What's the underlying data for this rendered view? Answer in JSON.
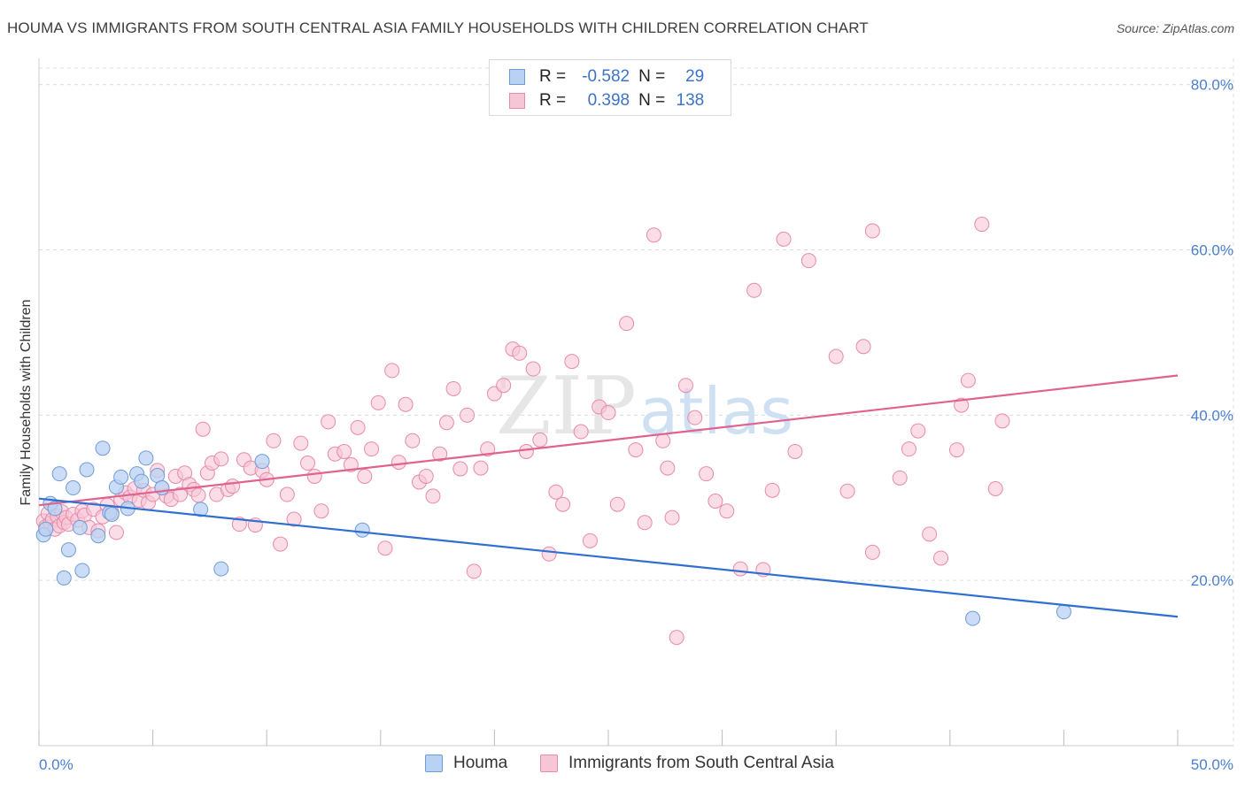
{
  "title": "HOUMA VS IMMIGRANTS FROM SOUTH CENTRAL ASIA FAMILY HOUSEHOLDS WITH CHILDREN CORRELATION CHART",
  "source": "Source: ZipAtlas.com",
  "watermark": {
    "zip": "ZIP",
    "atlas": "atlas"
  },
  "legend": {
    "rows": [
      {
        "r_label": "R =",
        "r_value": "-0.582",
        "n_label": "N =",
        "n_value": "29"
      },
      {
        "r_label": "R =",
        "r_value": "0.398",
        "n_label": "N =",
        "n_value": "138"
      }
    ]
  },
  "bottom_legend": {
    "houma": "Houma",
    "immigrants": "Immigrants from South Central Asia"
  },
  "colors": {
    "houma_fill": "#b9d2f3",
    "houma_stroke": "#6f9bd8",
    "houma_line": "#2f6fcf",
    "imm_fill": "#f7c6d6",
    "imm_stroke": "#e88aaa",
    "imm_line": "#e0628f",
    "tick_text": "#4a7fd0",
    "grid": "#dcdcdc"
  },
  "chart_data": {
    "type": "scatter",
    "title": "HOUMA VS IMMIGRANTS FROM SOUTH CENTRAL ASIA FAMILY HOUSEHOLDS WITH CHILDREN CORRELATION CHART",
    "xlabel": "",
    "ylabel": "Family Households with Children",
    "xlim": [
      0,
      50
    ],
    "ylim": [
      0,
      82
    ],
    "x_tick_labels": [
      "0.0%",
      "50.0%"
    ],
    "y_ticks": [
      20,
      40,
      60,
      80
    ],
    "y_tick_labels": [
      "20.0%",
      "40.0%",
      "60.0%",
      "80.0%"
    ],
    "grid": true,
    "series": [
      {
        "name": "Houma",
        "R": -0.582,
        "N": 29,
        "trend": {
          "x": [
            0,
            50
          ],
          "y": [
            29.9,
            15.6
          ]
        },
        "points": [
          [
            0.2,
            25.5
          ],
          [
            0.3,
            26.2
          ],
          [
            0.5,
            29.3
          ],
          [
            0.7,
            28.7
          ],
          [
            0.9,
            32.9
          ],
          [
            1.1,
            20.3
          ],
          [
            1.3,
            23.7
          ],
          [
            1.5,
            31.2
          ],
          [
            1.8,
            26.4
          ],
          [
            1.9,
            21.2
          ],
          [
            2.1,
            33.4
          ],
          [
            2.6,
            25.4
          ],
          [
            2.8,
            36.0
          ],
          [
            3.1,
            28.2
          ],
          [
            3.4,
            31.3
          ],
          [
            3.6,
            32.5
          ],
          [
            3.9,
            28.7
          ],
          [
            4.3,
            32.9
          ],
          [
            4.5,
            32.0
          ],
          [
            4.7,
            34.8
          ],
          [
            5.2,
            32.7
          ],
          [
            5.4,
            31.2
          ],
          [
            7.1,
            28.6
          ],
          [
            8.0,
            21.4
          ],
          [
            9.8,
            34.4
          ],
          [
            14.2,
            26.1
          ],
          [
            3.2,
            28.0
          ],
          [
            41.0,
            15.4
          ],
          [
            45.0,
            16.2
          ]
        ]
      },
      {
        "name": "Immigrants from South Central Asia",
        "R": 0.398,
        "N": 138,
        "trend": {
          "x": [
            0,
            50
          ],
          "y": [
            29.1,
            44.8
          ]
        },
        "points": [
          [
            0.2,
            27.2
          ],
          [
            0.3,
            26.5
          ],
          [
            0.4,
            28.1
          ],
          [
            0.5,
            26.9
          ],
          [
            0.6,
            27.4
          ],
          [
            0.7,
            26.2
          ],
          [
            0.8,
            27.8
          ],
          [
            0.9,
            26.6
          ],
          [
            1.0,
            28.3
          ],
          [
            1.1,
            27.0
          ],
          [
            1.2,
            27.6
          ],
          [
            1.3,
            26.8
          ],
          [
            1.5,
            28.0
          ],
          [
            1.7,
            27.3
          ],
          [
            1.9,
            28.4
          ],
          [
            2.0,
            27.9
          ],
          [
            2.2,
            26.4
          ],
          [
            2.4,
            28.6
          ],
          [
            2.6,
            26.0
          ],
          [
            2.8,
            27.7
          ],
          [
            3.0,
            29.1
          ],
          [
            3.2,
            28.2
          ],
          [
            3.4,
            25.8
          ],
          [
            3.6,
            29.8
          ],
          [
            3.8,
            30.6
          ],
          [
            4.0,
            30.1
          ],
          [
            4.2,
            31.1
          ],
          [
            4.4,
            29.7
          ],
          [
            4.6,
            30.9
          ],
          [
            4.8,
            29.4
          ],
          [
            5.0,
            30.4
          ],
          [
            5.2,
            33.3
          ],
          [
            5.4,
            31.2
          ],
          [
            5.6,
            30.2
          ],
          [
            5.8,
            29.8
          ],
          [
            6.0,
            32.6
          ],
          [
            6.2,
            30.4
          ],
          [
            6.4,
            33.0
          ],
          [
            6.6,
            31.6
          ],
          [
            6.8,
            31.0
          ],
          [
            7.0,
            30.3
          ],
          [
            7.2,
            38.3
          ],
          [
            7.4,
            33.0
          ],
          [
            7.6,
            34.2
          ],
          [
            7.8,
            30.4
          ],
          [
            8.0,
            34.7
          ],
          [
            8.3,
            31.0
          ],
          [
            8.5,
            31.4
          ],
          [
            8.8,
            26.8
          ],
          [
            9.0,
            34.6
          ],
          [
            9.3,
            33.6
          ],
          [
            9.5,
            26.7
          ],
          [
            9.8,
            33.3
          ],
          [
            10.0,
            32.2
          ],
          [
            10.3,
            36.9
          ],
          [
            10.6,
            24.4
          ],
          [
            10.9,
            30.4
          ],
          [
            11.2,
            27.4
          ],
          [
            11.5,
            36.6
          ],
          [
            11.8,
            34.2
          ],
          [
            12.1,
            32.6
          ],
          [
            12.4,
            28.4
          ],
          [
            12.7,
            39.2
          ],
          [
            13.0,
            35.3
          ],
          [
            13.4,
            35.6
          ],
          [
            13.7,
            34.0
          ],
          [
            14.0,
            38.5
          ],
          [
            14.3,
            32.6
          ],
          [
            14.6,
            35.9
          ],
          [
            14.9,
            41.5
          ],
          [
            15.2,
            23.9
          ],
          [
            15.5,
            45.4
          ],
          [
            15.8,
            34.3
          ],
          [
            16.1,
            41.3
          ],
          [
            16.4,
            36.9
          ],
          [
            16.7,
            31.9
          ],
          [
            17.0,
            32.6
          ],
          [
            17.3,
            30.2
          ],
          [
            17.6,
            35.3
          ],
          [
            17.9,
            39.1
          ],
          [
            18.2,
            43.2
          ],
          [
            18.5,
            33.5
          ],
          [
            18.8,
            40.0
          ],
          [
            19.1,
            21.1
          ],
          [
            19.4,
            33.6
          ],
          [
            19.7,
            35.9
          ],
          [
            20.0,
            42.6
          ],
          [
            20.4,
            43.6
          ],
          [
            20.8,
            48.0
          ],
          [
            21.1,
            47.5
          ],
          [
            21.4,
            35.6
          ],
          [
            21.7,
            45.6
          ],
          [
            22.0,
            37.0
          ],
          [
            22.4,
            23.2
          ],
          [
            22.7,
            30.7
          ],
          [
            23.0,
            29.2
          ],
          [
            23.4,
            46.5
          ],
          [
            23.8,
            38.0
          ],
          [
            24.2,
            24.8
          ],
          [
            24.6,
            41.0
          ],
          [
            25.0,
            40.3
          ],
          [
            25.4,
            29.2
          ],
          [
            25.8,
            51.1
          ],
          [
            26.2,
            35.8
          ],
          [
            26.6,
            27.0
          ],
          [
            27.0,
            61.8
          ],
          [
            27.4,
            36.9
          ],
          [
            27.6,
            33.6
          ],
          [
            27.8,
            27.6
          ],
          [
            28.0,
            13.1
          ],
          [
            28.4,
            43.6
          ],
          [
            28.8,
            39.7
          ],
          [
            29.3,
            32.9
          ],
          [
            29.7,
            29.6
          ],
          [
            30.2,
            28.4
          ],
          [
            30.8,
            21.4
          ],
          [
            31.4,
            55.1
          ],
          [
            31.8,
            21.3
          ],
          [
            32.2,
            30.9
          ],
          [
            32.7,
            61.3
          ],
          [
            33.2,
            35.6
          ],
          [
            33.8,
            58.7
          ],
          [
            35.0,
            47.1
          ],
          [
            35.5,
            30.8
          ],
          [
            36.2,
            48.3
          ],
          [
            36.6,
            23.4
          ],
          [
            37.8,
            32.4
          ],
          [
            38.2,
            35.9
          ],
          [
            38.6,
            38.1
          ],
          [
            39.1,
            25.6
          ],
          [
            39.6,
            22.7
          ],
          [
            40.3,
            35.8
          ],
          [
            40.5,
            41.2
          ],
          [
            40.8,
            44.2
          ],
          [
            42.3,
            39.3
          ],
          [
            42.0,
            31.1
          ],
          [
            36.6,
            62.3
          ],
          [
            41.4,
            63.1
          ]
        ]
      }
    ]
  }
}
